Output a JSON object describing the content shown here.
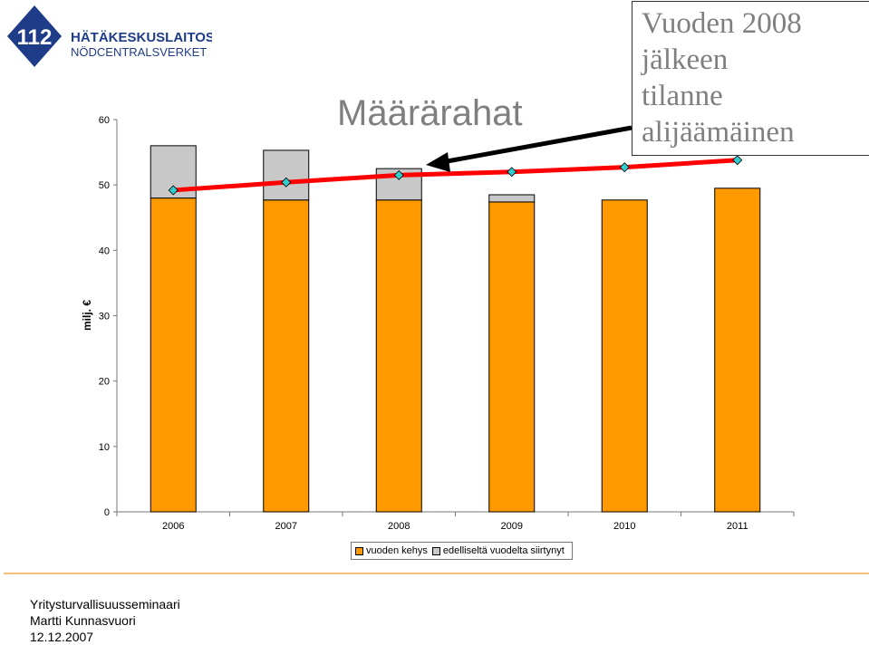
{
  "logo": {
    "number": "112",
    "line1": "HÄTÄKESKUSLAITOS",
    "line2": "NÖDCENTRALSVERKET",
    "color": "#1f3c88"
  },
  "callout": {
    "lines": [
      "Vuoden 2008",
      "jälkeen",
      "tilanne",
      "alijäämäinen"
    ]
  },
  "chart_data": {
    "type": "bar",
    "stacked": true,
    "title": "Määrärahat",
    "ylabel": "milj. €",
    "xlabel": "",
    "categories": [
      "2006",
      "2007",
      "2008",
      "2009",
      "2010",
      "2011"
    ],
    "ylim": [
      0,
      60
    ],
    "yticks": [
      0,
      10,
      20,
      30,
      40,
      50,
      60
    ],
    "grid": false,
    "legend_position": "bottom",
    "series": [
      {
        "name": "vuoden kehys",
        "color": "#ff9900",
        "values": [
          48.0,
          47.7,
          47.7,
          47.4,
          47.7,
          49.5
        ]
      },
      {
        "name": "edelliseltä vuodelta siirtynyt",
        "color": "#c8c8c8",
        "values": [
          8.0,
          7.6,
          4.8,
          1.1,
          0,
          0
        ]
      }
    ],
    "overlay_line": {
      "color": "#ff0000",
      "marker_color": "#33cccc",
      "values": [
        49.2,
        50.4,
        51.5,
        52.0,
        52.7,
        53.8
      ]
    }
  },
  "footer": {
    "line1": "Yritysturvallisuusseminaari",
    "line2": "Martti Kunnasvuori",
    "line3": "12.12.2007"
  }
}
